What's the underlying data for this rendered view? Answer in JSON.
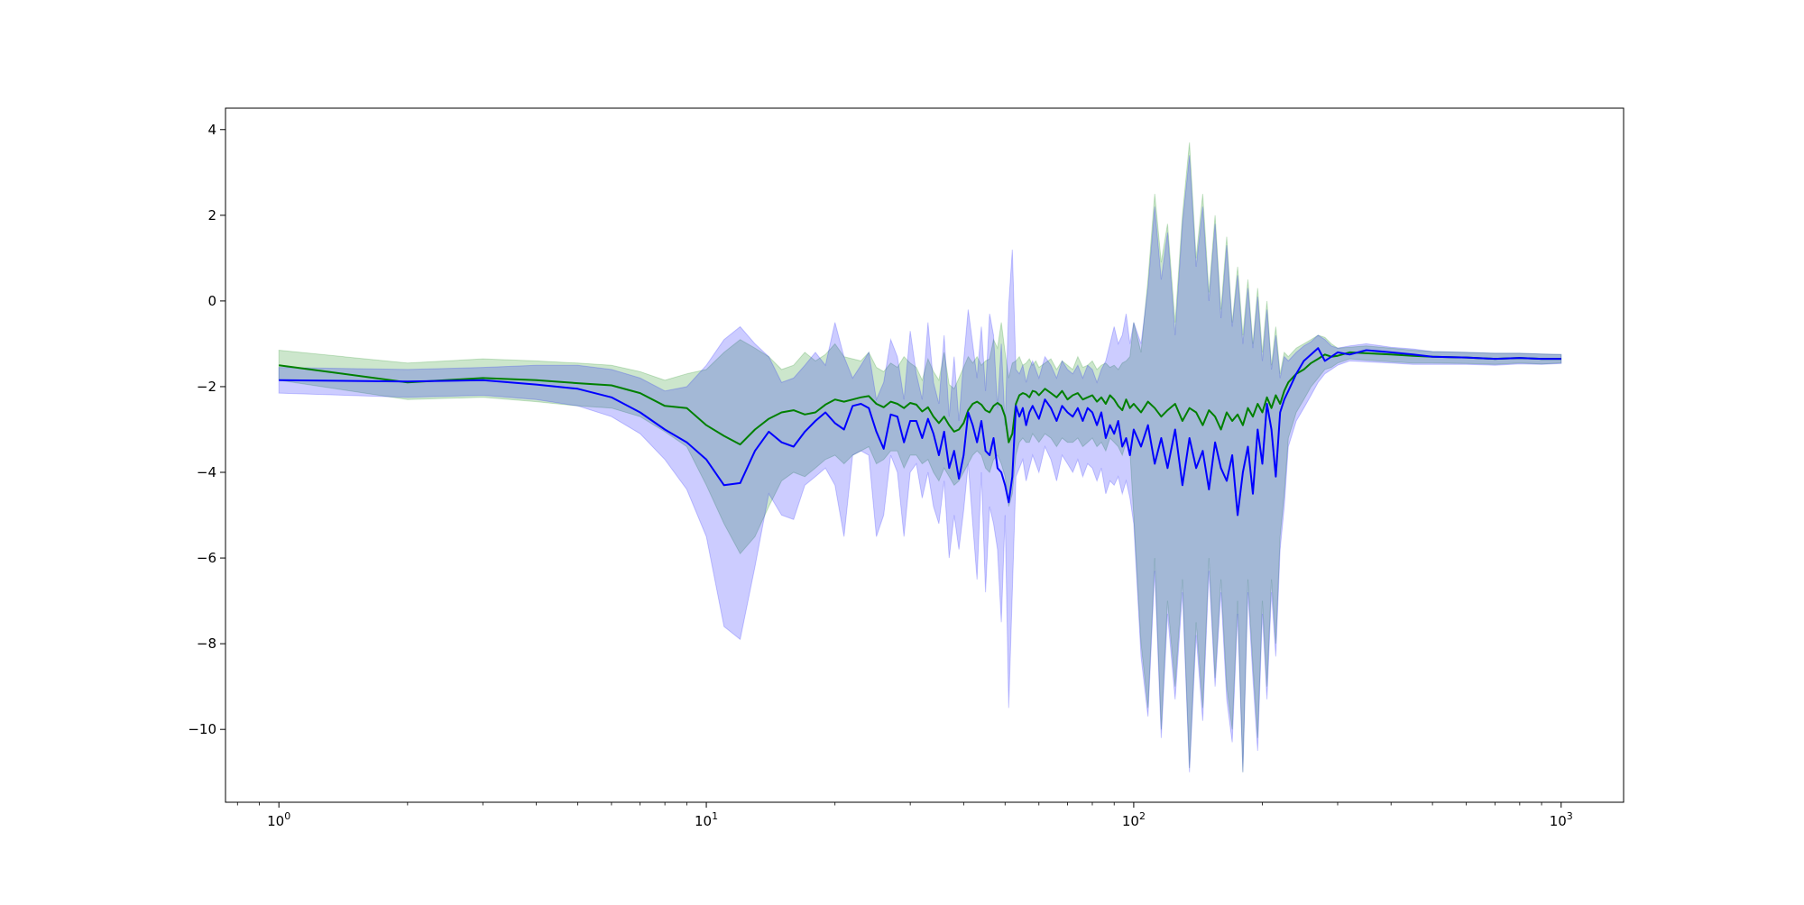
{
  "chart_data": {
    "type": "line",
    "xscale": "log",
    "xlim": [
      0.75,
      1400
    ],
    "ylim": [
      -11.7,
      4.5
    ],
    "grid": false,
    "legend": "none",
    "title": "",
    "xlabel": "",
    "ylabel": "",
    "x_ticks": [
      {
        "value": 1,
        "base": "10",
        "exp": "0"
      },
      {
        "value": 10,
        "base": "10",
        "exp": "1"
      },
      {
        "value": 100,
        "base": "10",
        "exp": "2"
      },
      {
        "value": 1000,
        "base": "10",
        "exp": "3"
      }
    ],
    "y_ticks": [
      {
        "value": 4,
        "label": "4"
      },
      {
        "value": 2,
        "label": "2"
      },
      {
        "value": 0,
        "label": "0"
      },
      {
        "value": -2,
        "label": "−2"
      },
      {
        "value": -4,
        "label": "−4"
      },
      {
        "value": -6,
        "label": "−6"
      },
      {
        "value": -8,
        "label": "−8"
      },
      {
        "value": -10,
        "label": "−10"
      }
    ],
    "series": [
      {
        "color": "#008000",
        "band_color": "#008000",
        "band_opacity": 0.2,
        "x": [
          1,
          2,
          3,
          4,
          5,
          6,
          7,
          8,
          9,
          10,
          11,
          12,
          13,
          14,
          15,
          16,
          17,
          18,
          19,
          20,
          21,
          22,
          23,
          24,
          25,
          26,
          27,
          28,
          29,
          30,
          31,
          32,
          33,
          34,
          35,
          36,
          37,
          38,
          39,
          40,
          41,
          42,
          43,
          44,
          45,
          46,
          47,
          48,
          49,
          50,
          51,
          52,
          53,
          54,
          55,
          56,
          57,
          58,
          59,
          60,
          62,
          64,
          66,
          68,
          70,
          72,
          74,
          76,
          78,
          80,
          82,
          84,
          86,
          88,
          90,
          92,
          94,
          96,
          98,
          100,
          104,
          108,
          112,
          116,
          120,
          125,
          130,
          135,
          140,
          145,
          150,
          155,
          160,
          165,
          170,
          175,
          180,
          185,
          190,
          195,
          200,
          205,
          210,
          215,
          220,
          225,
          230,
          240,
          250,
          260,
          270,
          280,
          290,
          300,
          320,
          350,
          400,
          450,
          500,
          600,
          700,
          800,
          900,
          1000
        ],
        "y": [
          -1.5,
          -1.9,
          -1.8,
          -1.85,
          -1.92,
          -1.97,
          -2.15,
          -2.45,
          -2.5,
          -2.9,
          -3.15,
          -3.35,
          -3.0,
          -2.75,
          -2.6,
          -2.55,
          -2.65,
          -2.6,
          -2.42,
          -2.3,
          -2.35,
          -2.3,
          -2.25,
          -2.22,
          -2.4,
          -2.48,
          -2.35,
          -2.4,
          -2.5,
          -2.38,
          -2.42,
          -2.58,
          -2.48,
          -2.7,
          -2.85,
          -2.7,
          -2.9,
          -3.05,
          -3.0,
          -2.85,
          -2.55,
          -2.4,
          -2.35,
          -2.42,
          -2.55,
          -2.6,
          -2.45,
          -2.38,
          -2.45,
          -2.7,
          -3.3,
          -3.1,
          -2.4,
          -2.2,
          -2.15,
          -2.18,
          -2.25,
          -2.1,
          -2.12,
          -2.2,
          -2.05,
          -2.15,
          -2.25,
          -2.1,
          -2.3,
          -2.2,
          -2.15,
          -2.3,
          -2.25,
          -2.2,
          -2.35,
          -2.25,
          -2.4,
          -2.2,
          -2.3,
          -2.45,
          -2.55,
          -2.3,
          -2.5,
          -2.4,
          -2.6,
          -2.35,
          -2.5,
          -2.7,
          -2.55,
          -2.4,
          -2.8,
          -2.5,
          -2.6,
          -2.9,
          -2.55,
          -2.7,
          -3.0,
          -2.6,
          -2.8,
          -2.65,
          -2.9,
          -2.5,
          -2.7,
          -2.4,
          -2.6,
          -2.25,
          -2.5,
          -2.2,
          -2.4,
          -2.1,
          -1.9,
          -1.7,
          -1.6,
          -1.45,
          -1.35,
          -1.25,
          -1.3,
          -1.28,
          -1.2,
          -1.22,
          -1.25,
          -1.28,
          -1.3,
          -1.32,
          -1.35,
          -1.33,
          -1.35,
          -1.35
        ],
        "upper": [
          -1.15,
          -1.45,
          -1.35,
          -1.4,
          -1.45,
          -1.5,
          -1.65,
          -1.85,
          -1.7,
          -1.6,
          -1.2,
          -0.9,
          -1.1,
          -1.3,
          -1.6,
          -1.5,
          -1.2,
          -1.4,
          -1.25,
          -1.0,
          -1.3,
          -1.35,
          -1.4,
          -1.2,
          -1.55,
          -1.65,
          -1.45,
          -1.55,
          -1.3,
          -1.45,
          -1.55,
          -1.85,
          -1.35,
          -1.65,
          -1.85,
          -1.2,
          -1.95,
          -2.05,
          -1.8,
          -1.55,
          -1.3,
          -1.45,
          -1.3,
          -1.5,
          -1.4,
          -1.35,
          -0.9,
          -1.1,
          -0.5,
          -1.2,
          -1.8,
          -1.45,
          -1.4,
          -1.3,
          -1.5,
          -1.45,
          -1.35,
          -1.5,
          -1.4,
          -1.55,
          -1.45,
          -1.35,
          -1.6,
          -1.4,
          -1.5,
          -1.6,
          -1.3,
          -1.55,
          -1.5,
          -1.4,
          -1.6,
          -1.5,
          -1.45,
          -1.55,
          -1.5,
          -1.6,
          -1.45,
          -1.4,
          -1.3,
          -0.5,
          -1.2,
          0.5,
          2.5,
          0.9,
          1.8,
          -0.5,
          2.0,
          3.7,
          1.0,
          2.5,
          0.2,
          2.0,
          -0.2,
          1.5,
          -0.5,
          0.8,
          -0.8,
          0.5,
          -1.0,
          0.3,
          -1.2,
          0.0,
          -1.5,
          -0.6,
          -1.7,
          -1.2,
          -1.3,
          -1.1,
          -1.0,
          -0.9,
          -0.8,
          -0.85,
          -1.0,
          -1.1,
          -1.08,
          -1.05,
          -1.1,
          -1.15,
          -1.18,
          -1.2,
          -1.22,
          -1.22,
          -1.24,
          -1.25
        ],
        "lower": [
          -1.85,
          -2.3,
          -2.25,
          -2.35,
          -2.45,
          -2.5,
          -2.7,
          -3.05,
          -3.4,
          -4.3,
          -5.2,
          -5.9,
          -5.5,
          -4.8,
          -4.2,
          -4.0,
          -4.1,
          -3.9,
          -3.7,
          -3.6,
          -3.8,
          -3.6,
          -3.5,
          -3.4,
          -3.8,
          -3.7,
          -3.5,
          -3.5,
          -3.9,
          -3.6,
          -3.6,
          -3.8,
          -3.7,
          -4.0,
          -4.2,
          -3.9,
          -4.1,
          -4.3,
          -4.2,
          -4.0,
          -3.8,
          -3.6,
          -3.5,
          -3.6,
          -3.9,
          -4.0,
          -3.7,
          -3.6,
          -3.8,
          -4.1,
          -4.8,
          -4.5,
          -3.6,
          -3.3,
          -3.2,
          -3.3,
          -3.3,
          -3.1,
          -3.2,
          -3.3,
          -3.1,
          -3.2,
          -3.4,
          -3.2,
          -3.3,
          -3.3,
          -3.2,
          -3.4,
          -3.3,
          -3.2,
          -3.4,
          -3.3,
          -3.5,
          -3.2,
          -3.3,
          -3.4,
          -3.6,
          -3.3,
          -3.5,
          -5.0,
          -8.0,
          -9.5,
          -6.0,
          -10.0,
          -7.0,
          -9.0,
          -6.5,
          -10.9,
          -7.5,
          -9.5,
          -6.0,
          -8.8,
          -6.5,
          -9.0,
          -10.0,
          -7.0,
          -11.0,
          -6.5,
          -8.5,
          -10.2,
          -7.0,
          -9.0,
          -6.5,
          -8.0,
          -5.5,
          -4.5,
          -3.2,
          -2.6,
          -2.3,
          -2.0,
          -1.8,
          -1.6,
          -1.55,
          -1.45,
          -1.35,
          -1.38,
          -1.42,
          -1.45,
          -1.45,
          -1.46,
          -1.48,
          -1.45,
          -1.47,
          -1.45
        ]
      },
      {
        "color": "#0000ff",
        "band_color": "#0000ff",
        "band_opacity": 0.2,
        "x": [
          1,
          2,
          3,
          4,
          5,
          6,
          7,
          8,
          9,
          10,
          11,
          12,
          13,
          14,
          15,
          16,
          17,
          18,
          19,
          20,
          21,
          22,
          23,
          24,
          25,
          26,
          27,
          28,
          29,
          30,
          31,
          32,
          33,
          34,
          35,
          36,
          37,
          38,
          39,
          40,
          41,
          42,
          43,
          44,
          45,
          46,
          47,
          48,
          49,
          50,
          51,
          52,
          53,
          54,
          55,
          56,
          57,
          58,
          59,
          60,
          62,
          64,
          66,
          68,
          70,
          72,
          74,
          76,
          78,
          80,
          82,
          84,
          86,
          88,
          90,
          92,
          94,
          96,
          98,
          100,
          104,
          108,
          112,
          116,
          120,
          125,
          130,
          135,
          140,
          145,
          150,
          155,
          160,
          165,
          170,
          175,
          180,
          185,
          190,
          195,
          200,
          205,
          210,
          215,
          220,
          225,
          230,
          240,
          250,
          260,
          270,
          280,
          290,
          300,
          320,
          350,
          400,
          450,
          500,
          600,
          700,
          800,
          900,
          1000
        ],
        "y": [
          -1.85,
          -1.88,
          -1.85,
          -1.95,
          -2.05,
          -2.25,
          -2.6,
          -3.0,
          -3.3,
          -3.7,
          -4.3,
          -4.25,
          -3.5,
          -3.05,
          -3.3,
          -3.4,
          -3.05,
          -2.8,
          -2.6,
          -2.85,
          -3.0,
          -2.45,
          -2.4,
          -2.5,
          -3.05,
          -3.45,
          -2.65,
          -2.7,
          -3.3,
          -2.8,
          -2.8,
          -3.2,
          -2.75,
          -3.1,
          -3.6,
          -3.05,
          -3.9,
          -3.5,
          -4.15,
          -3.6,
          -2.6,
          -2.9,
          -3.3,
          -2.8,
          -3.5,
          -3.6,
          -3.2,
          -3.9,
          -4.0,
          -4.3,
          -4.7,
          -4.1,
          -2.45,
          -2.7,
          -2.5,
          -2.9,
          -2.6,
          -2.45,
          -2.6,
          -2.75,
          -2.3,
          -2.5,
          -2.8,
          -2.45,
          -2.6,
          -2.7,
          -2.5,
          -2.8,
          -2.5,
          -2.6,
          -2.9,
          -2.6,
          -3.2,
          -2.9,
          -3.1,
          -2.8,
          -3.4,
          -3.2,
          -3.6,
          -3.0,
          -3.4,
          -2.9,
          -3.8,
          -3.2,
          -3.9,
          -3.0,
          -4.3,
          -3.2,
          -3.9,
          -3.5,
          -4.4,
          -3.3,
          -3.9,
          -4.2,
          -3.6,
          -5.0,
          -4.0,
          -3.4,
          -4.5,
          -3.0,
          -3.8,
          -2.4,
          -3.0,
          -4.1,
          -2.6,
          -2.3,
          -2.1,
          -1.7,
          -1.4,
          -1.25,
          -1.1,
          -1.4,
          -1.3,
          -1.2,
          -1.25,
          -1.15,
          -1.2,
          -1.25,
          -1.3,
          -1.32,
          -1.35,
          -1.33,
          -1.35,
          -1.35
        ],
        "upper": [
          -1.55,
          -1.6,
          -1.55,
          -1.5,
          -1.5,
          -1.6,
          -1.8,
          -2.1,
          -2.0,
          -1.5,
          -0.9,
          -0.6,
          -1.0,
          -1.3,
          -1.9,
          -1.8,
          -1.5,
          -1.2,
          -1.5,
          -0.5,
          -1.3,
          -1.8,
          -1.5,
          -1.2,
          -2.3,
          -1.9,
          -0.9,
          -1.3,
          -2.3,
          -0.7,
          -1.7,
          -2.3,
          -0.5,
          -1.9,
          -2.4,
          -0.8,
          -2.7,
          -1.3,
          -2.8,
          -1.4,
          -0.2,
          -1.0,
          -1.8,
          -0.6,
          -2.1,
          -0.3,
          -0.8,
          -2.5,
          -1.0,
          -2.9,
          -0.1,
          1.2,
          -1.6,
          -1.7,
          -1.5,
          -1.9,
          -1.6,
          -1.4,
          -1.6,
          -1.8,
          -1.3,
          -1.5,
          -1.8,
          -1.4,
          -1.6,
          -1.7,
          -1.5,
          -1.8,
          -1.5,
          -1.6,
          -1.9,
          -1.6,
          -1.4,
          -1.0,
          -0.6,
          -1.0,
          -0.8,
          -0.3,
          -1.0,
          -0.5,
          -1.0,
          0.3,
          2.2,
          0.5,
          1.6,
          -0.8,
          1.8,
          3.4,
          0.8,
          2.2,
          0.0,
          1.8,
          -0.4,
          1.3,
          -0.6,
          0.6,
          -1.0,
          0.3,
          -1.1,
          0.1,
          -1.4,
          -0.2,
          -1.6,
          -0.8,
          -1.8,
          -1.3,
          -1.4,
          -1.2,
          -1.05,
          -0.95,
          -0.8,
          -0.9,
          -1.05,
          -1.1,
          -1.05,
          -1.0,
          -1.08,
          -1.12,
          -1.18,
          -1.2,
          -1.22,
          -1.22,
          -1.24,
          -1.25
        ],
        "lower": [
          -2.15,
          -2.25,
          -2.2,
          -2.3,
          -2.45,
          -2.7,
          -3.1,
          -3.7,
          -4.4,
          -5.5,
          -7.6,
          -7.9,
          -6.2,
          -4.5,
          -5.0,
          -5.1,
          -4.3,
          -4.1,
          -3.9,
          -4.3,
          -5.5,
          -3.6,
          -3.5,
          -3.6,
          -5.5,
          -5.0,
          -3.6,
          -4.0,
          -5.5,
          -4.0,
          -3.8,
          -4.6,
          -4.0,
          -4.8,
          -5.2,
          -4.2,
          -6.0,
          -5.0,
          -5.8,
          -4.9,
          -3.8,
          -5.2,
          -6.5,
          -4.0,
          -6.8,
          -4.8,
          -5.2,
          -5.8,
          -7.5,
          -5.0,
          -9.5,
          -6.8,
          -4.1,
          -3.9,
          -3.7,
          -4.2,
          -3.9,
          -3.6,
          -3.8,
          -4.0,
          -3.4,
          -3.7,
          -4.2,
          -3.6,
          -3.8,
          -4.0,
          -3.7,
          -4.1,
          -3.8,
          -3.9,
          -4.2,
          -3.9,
          -4.5,
          -4.2,
          -4.3,
          -4.1,
          -4.5,
          -4.2,
          -4.6,
          -5.2,
          -8.3,
          -9.7,
          -6.3,
          -10.2,
          -7.3,
          -9.3,
          -6.8,
          -11.0,
          -7.8,
          -9.8,
          -6.3,
          -9.0,
          -6.8,
          -9.3,
          -10.3,
          -7.3,
          -11.0,
          -6.8,
          -8.8,
          -10.5,
          -7.3,
          -9.3,
          -6.8,
          -8.3,
          -5.8,
          -4.8,
          -3.4,
          -2.8,
          -2.5,
          -2.2,
          -1.9,
          -1.7,
          -1.6,
          -1.5,
          -1.4,
          -1.42,
          -1.45,
          -1.48,
          -1.48,
          -1.48,
          -1.5,
          -1.47,
          -1.48,
          -1.46
        ]
      }
    ]
  }
}
